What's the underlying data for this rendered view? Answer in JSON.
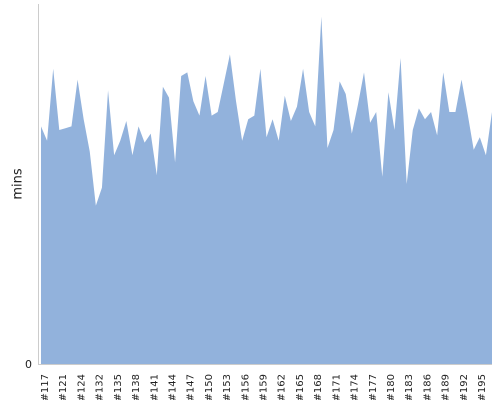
{
  "chart_data": {
    "type": "area",
    "title": "",
    "xlabel": "",
    "ylabel": "mins",
    "ylim": [
      0,
      100
    ],
    "y_ticks": [
      "0"
    ],
    "grid": false,
    "legend": "none",
    "fill_color": "#92b2dc",
    "axis_color": "#cccccc",
    "text_color": "#222222",
    "x_ticks": [
      "#117",
      "#121",
      "#124",
      "#132",
      "#135",
      "#138",
      "#141",
      "#144",
      "#147",
      "#150",
      "#153",
      "#156",
      "#159",
      "#162",
      "#165",
      "#168",
      "#171",
      "#174",
      "#177",
      "#180",
      "#183",
      "#186",
      "#189",
      "#192",
      "#195"
    ],
    "values": [
      66.0,
      62.0,
      82.0,
      65.0,
      65.5,
      66.0,
      79.0,
      68.0,
      59.0,
      44.0,
      49.0,
      76.0,
      58.0,
      62.0,
      67.5,
      58.0,
      66.0,
      61.5,
      64.0,
      52.5,
      77.0,
      74.0,
      56.0,
      80.0,
      81.0,
      73.0,
      69.0,
      80.0,
      69.0,
      70.0,
      78.0,
      86.0,
      73.0,
      62.0,
      68.0,
      69.0,
      82.0,
      63.0,
      68.0,
      62.0,
      74.5,
      67.5,
      71.5,
      82.0,
      70.0,
      66.0,
      96.5,
      60.0,
      65.0,
      78.5,
      75.0,
      64.0,
      72.0,
      81.0,
      67.0,
      70.0,
      52.0,
      75.5,
      65.0,
      85.0,
      50.0,
      65.0,
      71.0,
      68.0,
      70.0,
      63.5,
      81.0,
      70.0,
      70.0,
      79.0,
      69.5,
      59.5,
      63.0,
      58.0,
      70.0
    ]
  }
}
